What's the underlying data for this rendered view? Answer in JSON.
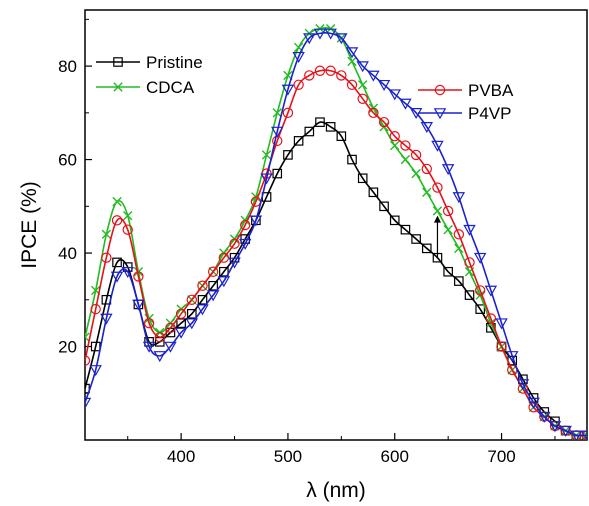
{
  "chart_data": {
    "type": "line",
    "xlabel": "λ (nm)",
    "ylabel": "IPCE (%)",
    "xlim": [
      310,
      780
    ],
    "ylim": [
      0,
      92
    ],
    "xticks": [
      400,
      500,
      600,
      700
    ],
    "yticks": [
      20,
      40,
      60,
      80
    ],
    "grid": false,
    "legend": [
      {
        "name": "Pristine",
        "color": "#000000",
        "marker": "square",
        "placement": "top-left"
      },
      {
        "name": "CDCA",
        "color": "#22bb22",
        "marker": "x",
        "placement": "top-left"
      },
      {
        "name": "PVBA",
        "color": "#e8101a",
        "marker": "circle",
        "placement": "top-right"
      },
      {
        "name": "P4VP",
        "color": "#1a22cc",
        "marker": "triangle-down",
        "placement": "top-right"
      }
    ],
    "annotation": {
      "type": "arrow-up",
      "x": 640,
      "y_from": 39,
      "y_to": 48
    },
    "series": [
      {
        "name": "Pristine",
        "color": "#000000",
        "marker": "square",
        "x": [
          310,
          320,
          330,
          340,
          350,
          360,
          370,
          380,
          390,
          400,
          410,
          420,
          430,
          440,
          450,
          460,
          470,
          480,
          490,
          500,
          510,
          520,
          530,
          540,
          550,
          560,
          570,
          580,
          590,
          600,
          610,
          620,
          630,
          640,
          650,
          660,
          670,
          680,
          690,
          700,
          710,
          720,
          730,
          740,
          750,
          760,
          770,
          780
        ],
        "y": [
          11,
          20,
          30,
          38,
          37,
          29,
          21,
          21,
          23,
          25,
          27,
          30,
          33,
          36,
          39,
          43,
          47,
          52,
          57,
          61,
          64,
          66,
          68,
          67,
          65,
          60,
          56,
          53,
          50,
          47,
          45,
          43,
          41,
          39,
          36,
          34,
          31,
          28,
          24,
          20,
          17,
          13,
          9,
          6,
          4,
          2,
          1,
          1
        ]
      },
      {
        "name": "CDCA",
        "color": "#22bb22",
        "marker": "x",
        "x": [
          310,
          320,
          330,
          340,
          350,
          360,
          370,
          380,
          390,
          400,
          410,
          420,
          430,
          440,
          450,
          460,
          470,
          480,
          490,
          500,
          510,
          520,
          530,
          540,
          550,
          560,
          570,
          580,
          590,
          600,
          610,
          620,
          630,
          640,
          650,
          660,
          670,
          680,
          690,
          700,
          710,
          720,
          730,
          740,
          750,
          760,
          770,
          780
        ],
        "y": [
          22,
          32,
          44,
          51,
          48,
          36,
          26,
          23,
          25,
          28,
          30,
          33,
          36,
          40,
          43,
          47,
          52,
          61,
          70,
          78,
          84,
          87,
          88,
          88,
          86,
          81,
          76,
          71,
          67,
          63,
          60,
          57,
          53,
          49,
          45,
          41,
          36,
          31,
          25,
          20,
          15,
          11,
          7,
          5,
          3,
          2,
          1,
          1
        ]
      },
      {
        "name": "PVBA",
        "color": "#e8101a",
        "marker": "circle",
        "x": [
          310,
          320,
          330,
          340,
          350,
          360,
          370,
          380,
          390,
          400,
          410,
          420,
          430,
          440,
          450,
          460,
          470,
          480,
          490,
          500,
          510,
          520,
          530,
          540,
          550,
          560,
          570,
          580,
          590,
          600,
          610,
          620,
          630,
          640,
          650,
          660,
          670,
          680,
          690,
          700,
          710,
          720,
          730,
          740,
          750,
          760,
          770,
          780
        ],
        "y": [
          17,
          28,
          39,
          47,
          45,
          35,
          25,
          22,
          24,
          27,
          30,
          33,
          36,
          39,
          42,
          46,
          51,
          57,
          64,
          70,
          76,
          78,
          79,
          79,
          78,
          76,
          73,
          70,
          68,
          65,
          63,
          61,
          58,
          54,
          49,
          44,
          38,
          32,
          26,
          20,
          15,
          11,
          7,
          5,
          3,
          2,
          1,
          1
        ]
      },
      {
        "name": "P4VP",
        "color": "#1a22cc",
        "marker": "triangle-down",
        "x": [
          310,
          320,
          330,
          340,
          350,
          360,
          370,
          380,
          390,
          400,
          410,
          420,
          430,
          440,
          450,
          460,
          470,
          480,
          490,
          500,
          510,
          520,
          530,
          540,
          550,
          560,
          570,
          580,
          590,
          600,
          610,
          620,
          630,
          640,
          650,
          660,
          670,
          680,
          690,
          700,
          710,
          720,
          730,
          740,
          750,
          760,
          770,
          780
        ],
        "y": [
          8,
          15,
          26,
          35,
          36,
          29,
          20,
          18,
          20,
          23,
          25,
          28,
          31,
          34,
          38,
          42,
          47,
          56,
          66,
          75,
          82,
          86,
          87,
          87,
          86,
          83,
          80,
          78,
          76,
          74,
          72,
          70,
          67,
          63,
          58,
          52,
          45,
          39,
          32,
          25,
          18,
          12,
          8,
          5,
          3,
          2,
          1,
          1
        ]
      }
    ]
  }
}
